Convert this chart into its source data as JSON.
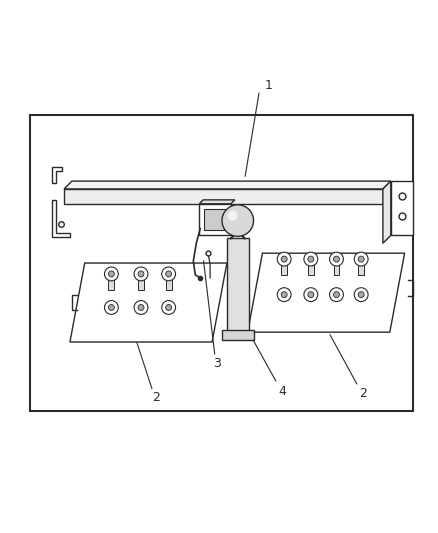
{
  "background_color": "#ffffff",
  "line_color": "#2a2a2a",
  "fig_width": 4.38,
  "fig_height": 5.33,
  "dpi": 100,
  "part_label_fontsize": 9
}
